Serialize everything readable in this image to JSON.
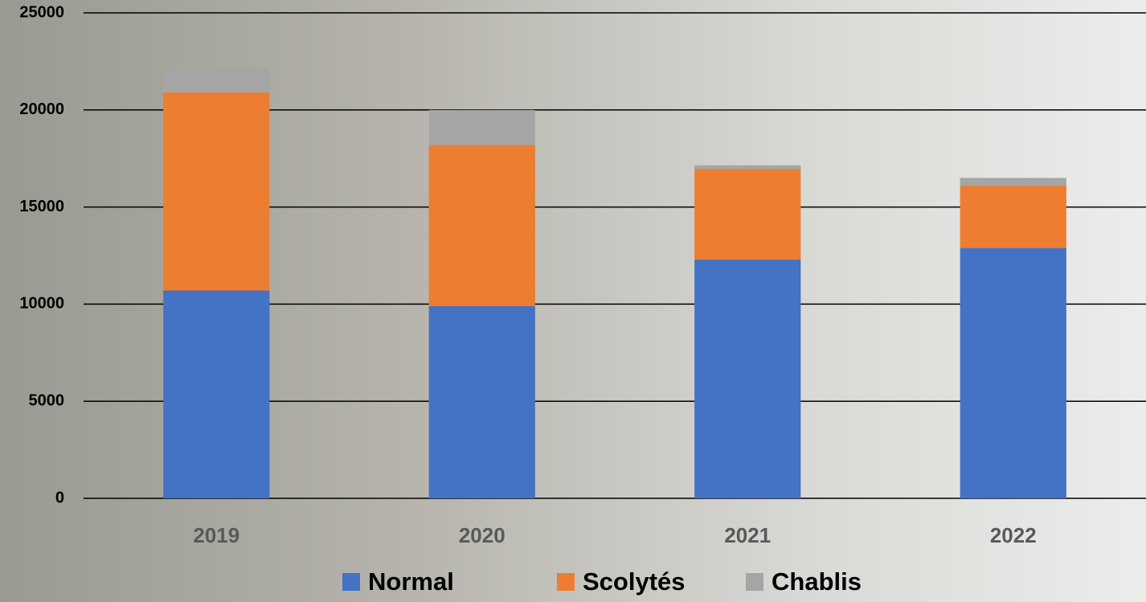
{
  "chart_data": {
    "type": "stacked_bar",
    "categories": [
      "2019",
      "2020",
      "2021",
      "2022"
    ],
    "series": [
      {
        "name": "Normal",
        "color": "#4472c4",
        "values": [
          10700,
          9900,
          12300,
          12900
        ]
      },
      {
        "name": "Scolytés",
        "color": "#ed7d31",
        "values": [
          10200,
          8300,
          4650,
          3200
        ]
      },
      {
        "name": "Chablis",
        "color": "#a5a5a5",
        "values": [
          1300,
          1800,
          200,
          400
        ]
      }
    ],
    "ylim": [
      0,
      25000
    ],
    "yticks": [
      0,
      5000,
      10000,
      15000,
      20000,
      25000
    ],
    "grid": true
  }
}
